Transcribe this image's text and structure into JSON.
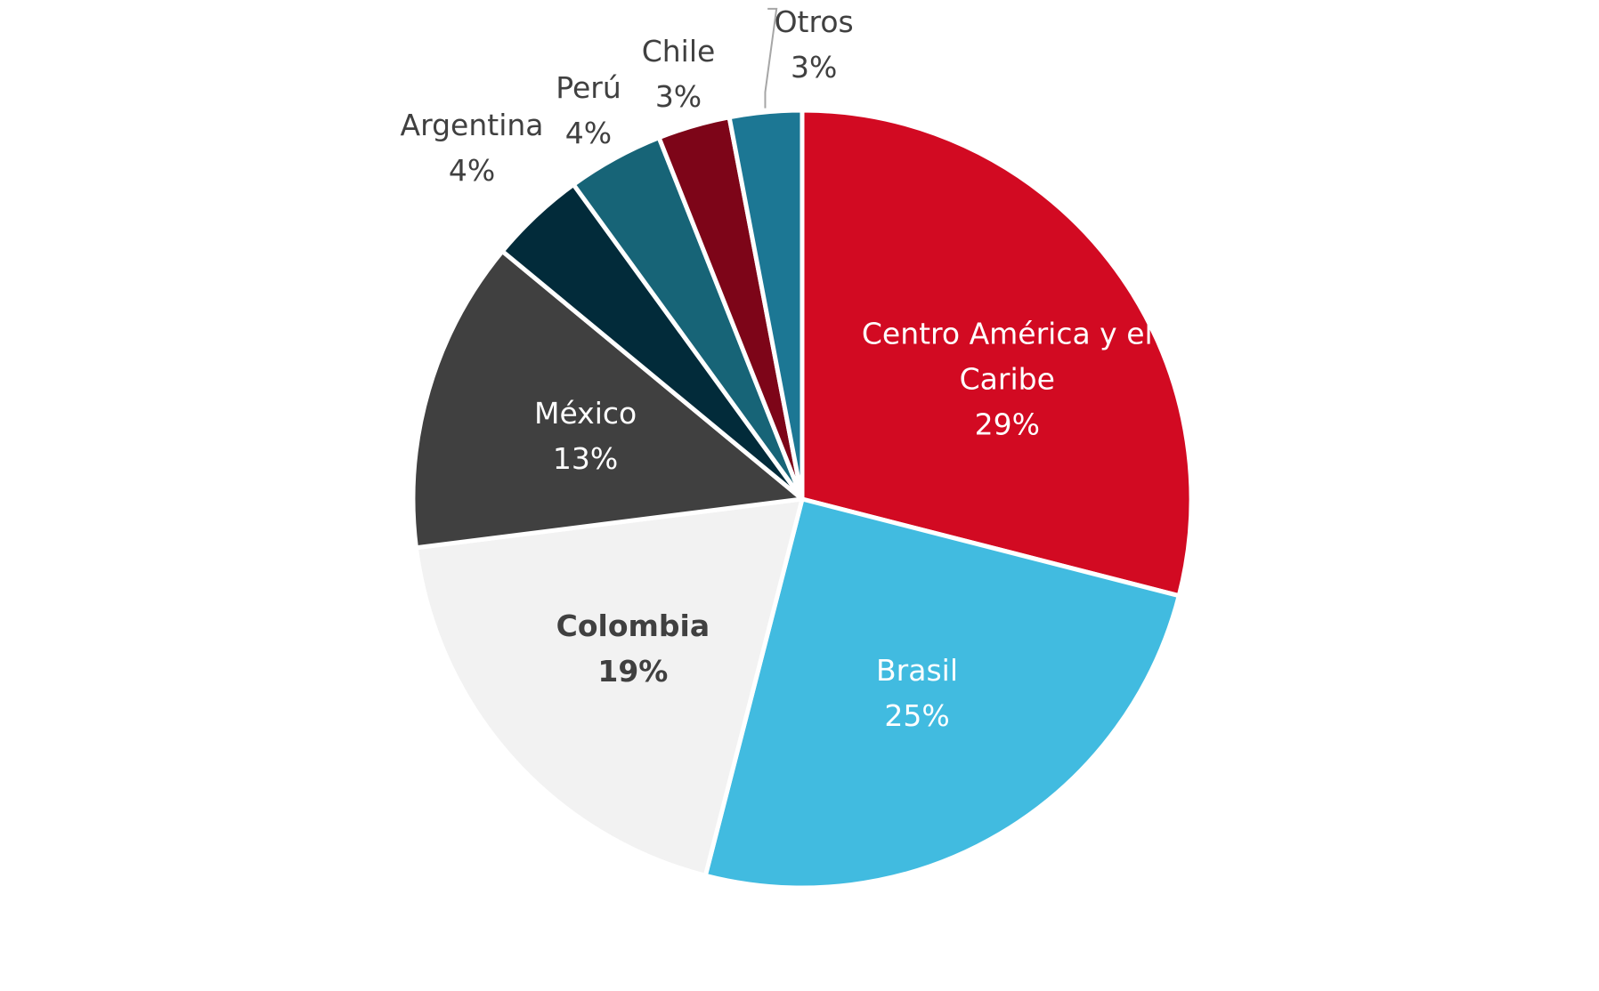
{
  "chart_data": {
    "type": "pie",
    "categories": [
      "Centro América y el Caribe",
      "Brasil",
      "Colombia",
      "México",
      "Argentina",
      "Perú",
      "Chile",
      "Otros"
    ],
    "values": [
      29,
      25,
      19,
      13,
      4,
      4,
      3,
      3
    ],
    "value_labels": [
      "29%",
      "25%",
      "19%",
      "13%",
      "4%",
      "4%",
      "3%",
      "3%"
    ],
    "colors": [
      "#d20a22",
      "#41bbe0",
      "#f2f2f2",
      "#404040",
      "#022b3a",
      "#176477",
      "#7d0518",
      "#1c7794"
    ]
  }
}
